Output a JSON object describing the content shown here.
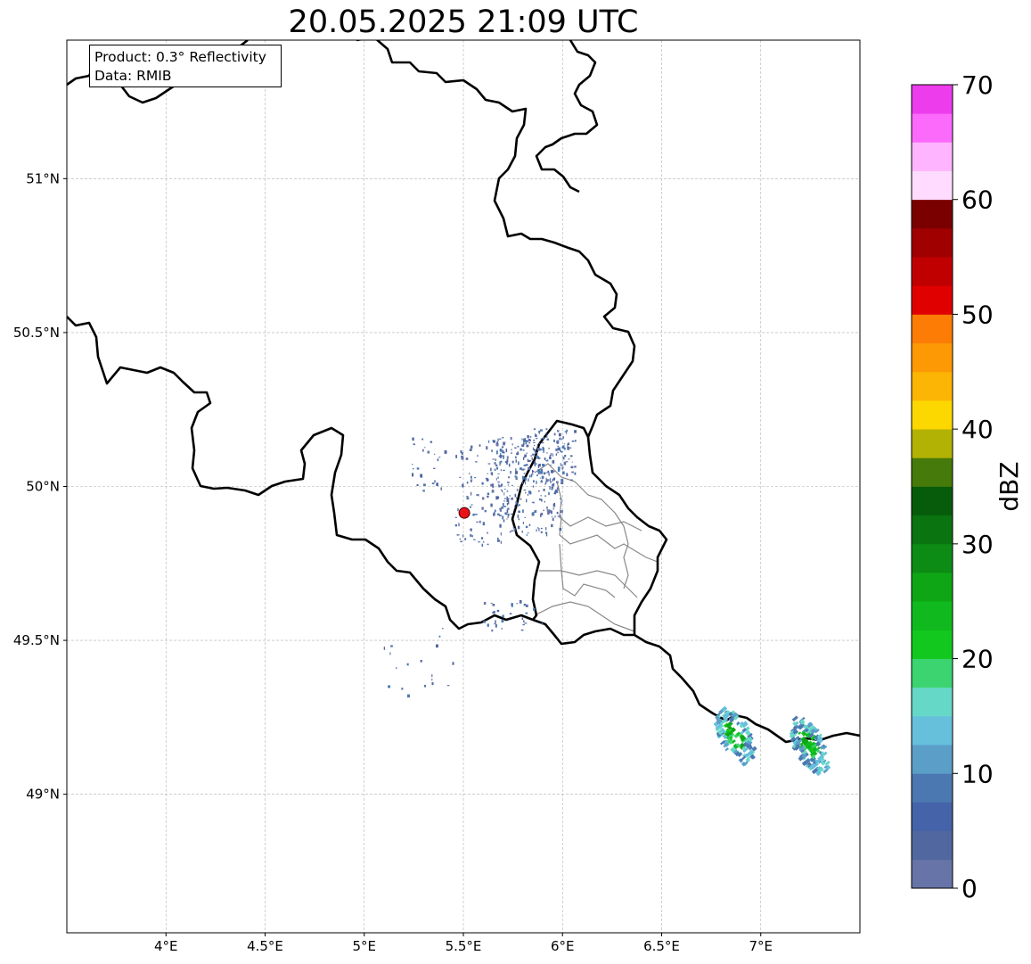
{
  "title": "20.05.2025 21:09 UTC",
  "info_box": {
    "product_line": "Product: 0.3° Reflectivity",
    "data_line": "Data: RMIB"
  },
  "map": {
    "lon_range": [
      3.5,
      7.5
    ],
    "lat_range": [
      48.55,
      51.45
    ],
    "gridlines": true,
    "lon_ticks": [
      {
        "value": 4.0,
        "label": "4°E"
      },
      {
        "value": 4.5,
        "label": "4.5°E"
      },
      {
        "value": 5.0,
        "label": "5°E"
      },
      {
        "value": 5.5,
        "label": "5.5°E"
      },
      {
        "value": 6.0,
        "label": "6°E"
      },
      {
        "value": 6.5,
        "label": "6.5°E"
      },
      {
        "value": 7.0,
        "label": "7°E"
      }
    ],
    "lat_ticks": [
      {
        "value": 51.0,
        "label": "51°N"
      },
      {
        "value": 50.5,
        "label": "50.5°N"
      },
      {
        "value": 50.0,
        "label": "50°N"
      },
      {
        "value": 49.5,
        "label": "49.5°N"
      },
      {
        "value": 49.0,
        "label": "49°N"
      }
    ],
    "radar_site": {
      "lon": 5.505,
      "lat": 49.914,
      "color": "#e8141a"
    }
  },
  "colorbar": {
    "title": "dBZ",
    "min": 0,
    "max": 70,
    "ticks": [
      {
        "value": 0,
        "label": "0"
      },
      {
        "value": 10,
        "label": "10"
      },
      {
        "value": 20,
        "label": "20"
      },
      {
        "value": 30,
        "label": "30"
      },
      {
        "value": 40,
        "label": "40"
      },
      {
        "value": 50,
        "label": "50"
      },
      {
        "value": 60,
        "label": "60"
      },
      {
        "value": 70,
        "label": "70"
      }
    ],
    "colors": [
      "#6674a8",
      "#51679f",
      "#4563a8",
      "#4b78b0",
      "#5b9ec8",
      "#66c0dc",
      "#66d8c8",
      "#3cd470",
      "#12c81e",
      "#10ba1e",
      "#0ea614",
      "#0c8c14",
      "#0a7410",
      "#065c0a",
      "#467a0a",
      "#b2b205",
      "#fcd800",
      "#fcb405",
      "#fc9905",
      "#fc7c05",
      "#e00000",
      "#c00000",
      "#a00000",
      "#7a0000",
      "#ffdcff",
      "#ffb4ff",
      "#fc6afc",
      "#ec3cec"
    ]
  }
}
